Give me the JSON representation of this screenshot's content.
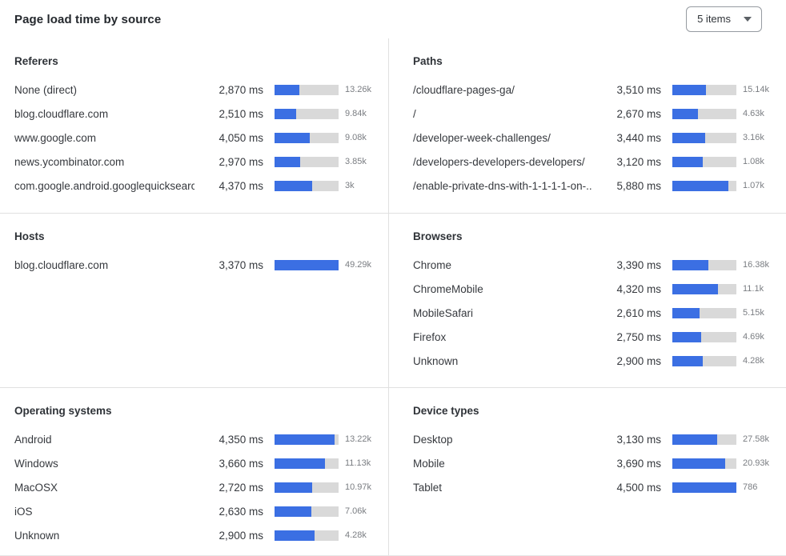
{
  "header": {
    "title": "Page load time by source",
    "items_dropdown": {
      "value": "5 items"
    }
  },
  "colors": {
    "bar_fill": "#3B6FE3",
    "bar_track": "#D9D9D9"
  },
  "chart_data": [
    {
      "type": "bar",
      "title": "Referers",
      "unit": "ms",
      "rows": [
        {
          "label": "None (direct)",
          "ms": 2870,
          "ms_label": "2,870 ms",
          "count_label": "13.26k",
          "bar_pct": 39
        },
        {
          "label": "blog.cloudflare.com",
          "ms": 2510,
          "ms_label": "2,510 ms",
          "count_label": "9.84k",
          "bar_pct": 34
        },
        {
          "label": "www.google.com",
          "ms": 4050,
          "ms_label": "4,050 ms",
          "count_label": "9.08k",
          "bar_pct": 55
        },
        {
          "label": "news.ycombinator.com",
          "ms": 2970,
          "ms_label": "2,970 ms",
          "count_label": "3.85k",
          "bar_pct": 40
        },
        {
          "label": "com.google.android.googlequicksearc...",
          "ms": 4370,
          "ms_label": "4,370 ms",
          "count_label": "3k",
          "bar_pct": 59
        }
      ]
    },
    {
      "type": "bar",
      "title": "Paths",
      "unit": "ms",
      "rows": [
        {
          "label": "/cloudflare-pages-ga/",
          "ms": 3510,
          "ms_label": "3,510 ms",
          "count_label": "15.14k",
          "bar_pct": 52
        },
        {
          "label": "/",
          "ms": 2670,
          "ms_label": "2,670 ms",
          "count_label": "4.63k",
          "bar_pct": 40
        },
        {
          "label": "/developer-week-challenges/",
          "ms": 3440,
          "ms_label": "3,440 ms",
          "count_label": "3.16k",
          "bar_pct": 51
        },
        {
          "label": "/developers-developers-developers/",
          "ms": 3120,
          "ms_label": "3,120 ms",
          "count_label": "1.08k",
          "bar_pct": 47
        },
        {
          "label": "/enable-private-dns-with-1-1-1-1-on-...",
          "ms": 5880,
          "ms_label": "5,880 ms",
          "count_label": "1.07k",
          "bar_pct": 88
        }
      ]
    },
    {
      "type": "bar",
      "title": "Hosts",
      "unit": "ms",
      "rows": [
        {
          "label": "blog.cloudflare.com",
          "ms": 3370,
          "ms_label": "3,370 ms",
          "count_label": "49.29k",
          "bar_pct": 100
        }
      ]
    },
    {
      "type": "bar",
      "title": "Browsers",
      "unit": "ms",
      "rows": [
        {
          "label": "Chrome",
          "ms": 3390,
          "ms_label": "3,390 ms",
          "count_label": "16.38k",
          "bar_pct": 56
        },
        {
          "label": "ChromeMobile",
          "ms": 4320,
          "ms_label": "4,320 ms",
          "count_label": "11.1k",
          "bar_pct": 71
        },
        {
          "label": "MobileSafari",
          "ms": 2610,
          "ms_label": "2,610 ms",
          "count_label": "5.15k",
          "bar_pct": 43
        },
        {
          "label": "Firefox",
          "ms": 2750,
          "ms_label": "2,750 ms",
          "count_label": "4.69k",
          "bar_pct": 45
        },
        {
          "label": "Unknown",
          "ms": 2900,
          "ms_label": "2,900 ms",
          "count_label": "4.28k",
          "bar_pct": 48
        }
      ]
    },
    {
      "type": "bar",
      "title": "Operating systems",
      "unit": "ms",
      "rows": [
        {
          "label": "Android",
          "ms": 4350,
          "ms_label": "4,350 ms",
          "count_label": "13.22k",
          "bar_pct": 94
        },
        {
          "label": "Windows",
          "ms": 3660,
          "ms_label": "3,660 ms",
          "count_label": "11.13k",
          "bar_pct": 79
        },
        {
          "label": "MacOSX",
          "ms": 2720,
          "ms_label": "2,720 ms",
          "count_label": "10.97k",
          "bar_pct": 59
        },
        {
          "label": "iOS",
          "ms": 2630,
          "ms_label": "2,630 ms",
          "count_label": "7.06k",
          "bar_pct": 57
        },
        {
          "label": "Unknown",
          "ms": 2900,
          "ms_label": "2,900 ms",
          "count_label": "4.28k",
          "bar_pct": 62
        }
      ]
    },
    {
      "type": "bar",
      "title": "Device types",
      "unit": "ms",
      "rows": [
        {
          "label": "Desktop",
          "ms": 3130,
          "ms_label": "3,130 ms",
          "count_label": "27.58k",
          "bar_pct": 70
        },
        {
          "label": "Mobile",
          "ms": 3690,
          "ms_label": "3,690 ms",
          "count_label": "20.93k",
          "bar_pct": 82
        },
        {
          "label": "Tablet",
          "ms": 4500,
          "ms_label": "4,500 ms",
          "count_label": "786",
          "bar_pct": 100
        }
      ]
    }
  ]
}
